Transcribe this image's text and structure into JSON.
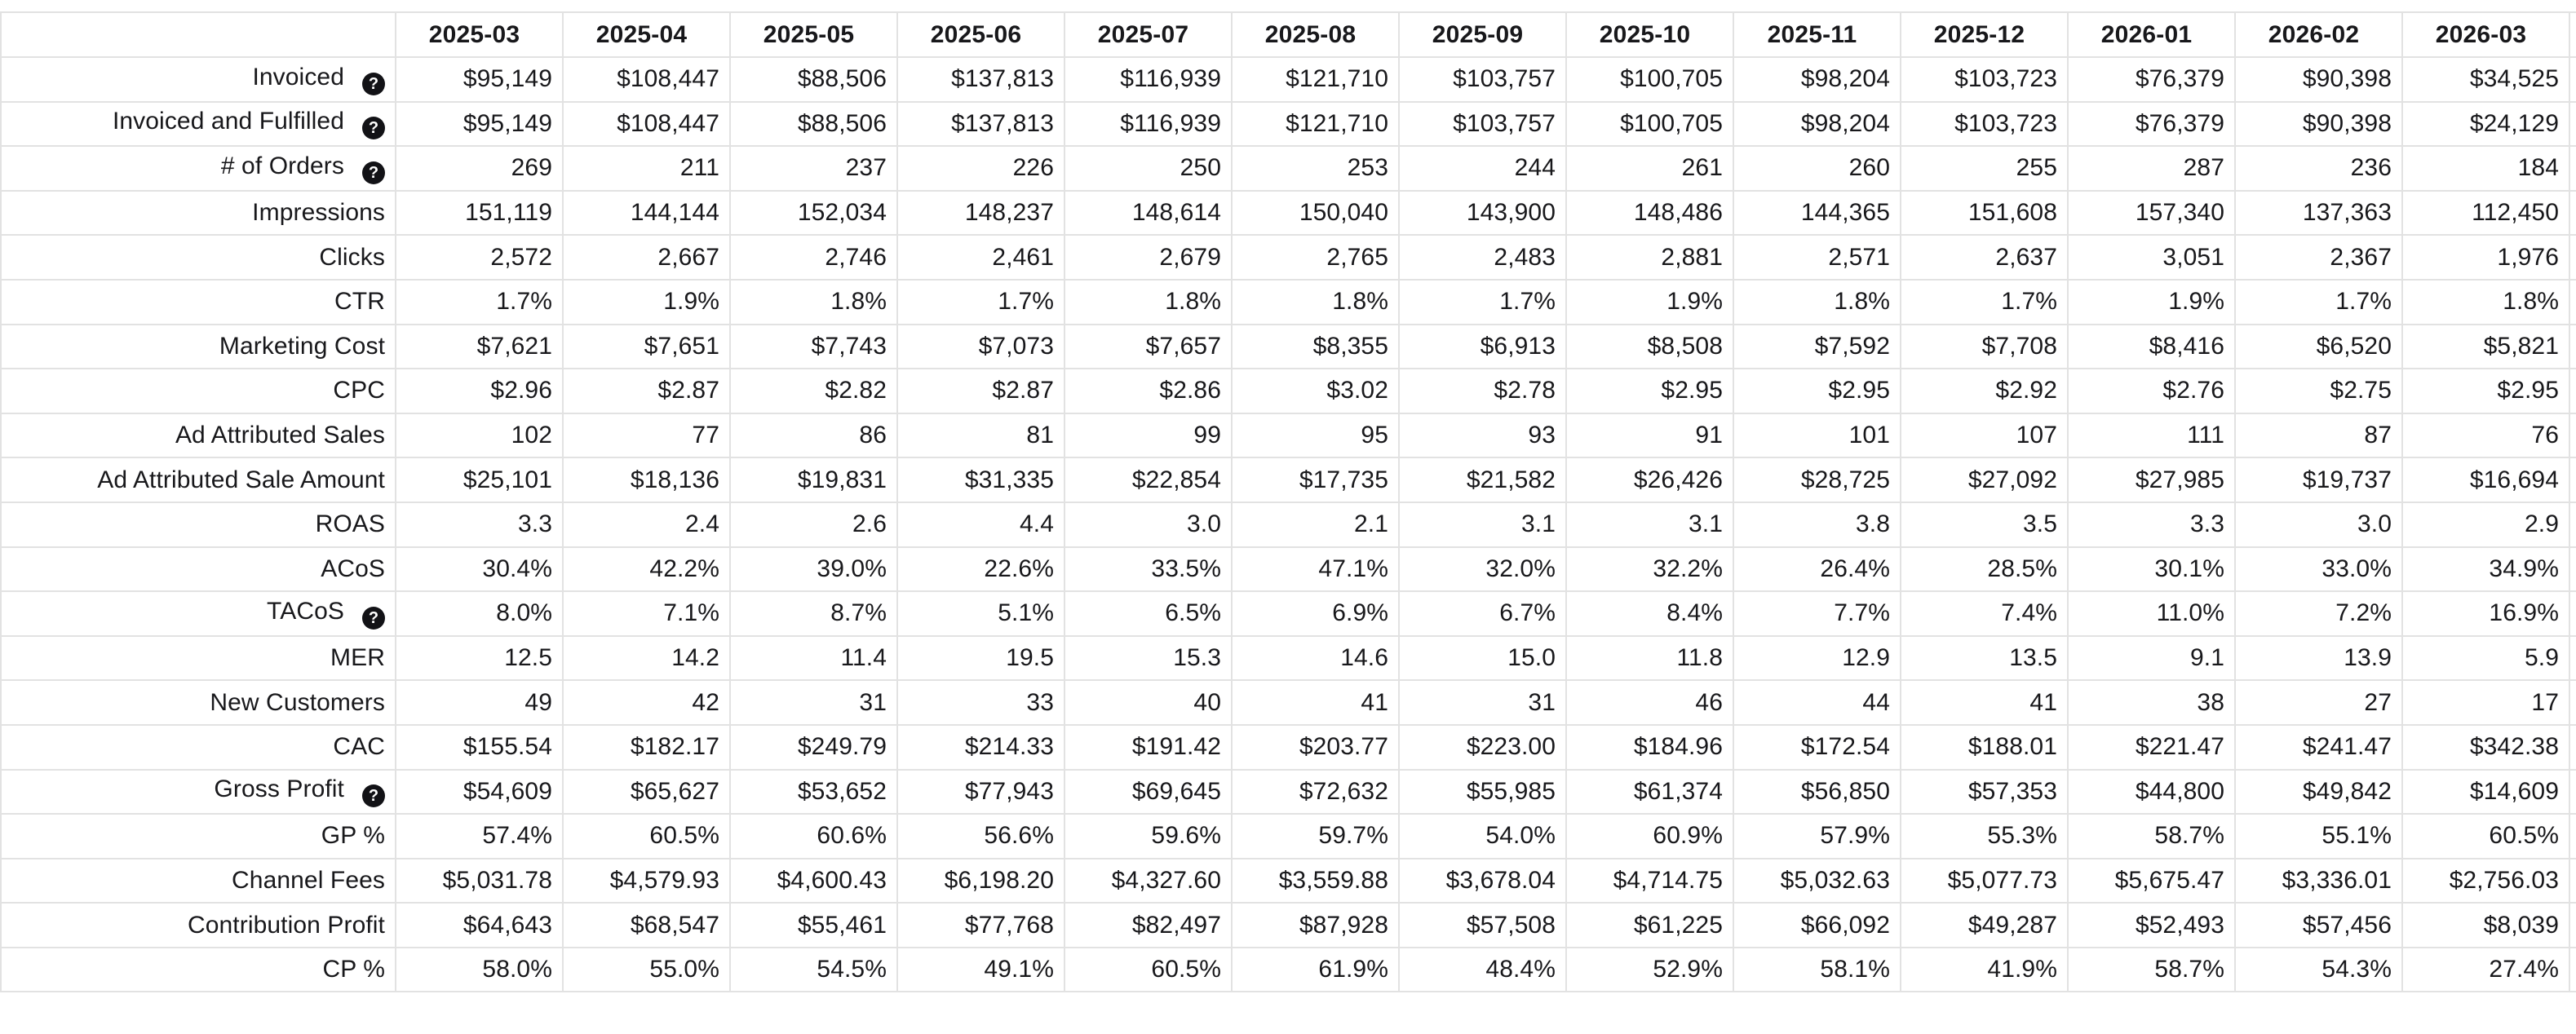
{
  "colors": {
    "border-color": "#e2e2e2",
    "text-color": "#18181b",
    "help-bg": "#121216",
    "help-fg": "#ffffff"
  },
  "icons": {
    "help_glyph": "?"
  },
  "table": {
    "columns": [
      "2025-03",
      "2025-04",
      "2025-05",
      "2025-06",
      "2025-07",
      "2025-08",
      "2025-09",
      "2025-10",
      "2025-11",
      "2025-12",
      "2026-01",
      "2026-02",
      "2026-03"
    ],
    "rows": [
      {
        "label": "Invoiced",
        "has_help": true,
        "values": [
          "$95,149",
          "$108,447",
          "$88,506",
          "$137,813",
          "$116,939",
          "$121,710",
          "$103,757",
          "$100,705",
          "$98,204",
          "$103,723",
          "$76,379",
          "$90,398",
          "$34,525"
        ]
      },
      {
        "label": "Invoiced and Fulfilled",
        "has_help": true,
        "values": [
          "$95,149",
          "$108,447",
          "$88,506",
          "$137,813",
          "$116,939",
          "$121,710",
          "$103,757",
          "$100,705",
          "$98,204",
          "$103,723",
          "$76,379",
          "$90,398",
          "$24,129"
        ]
      },
      {
        "label": "# of Orders",
        "has_help": true,
        "values": [
          "269",
          "211",
          "237",
          "226",
          "250",
          "253",
          "244",
          "261",
          "260",
          "255",
          "287",
          "236",
          "184"
        ]
      },
      {
        "label": "Impressions",
        "has_help": false,
        "values": [
          "151,119",
          "144,144",
          "152,034",
          "148,237",
          "148,614",
          "150,040",
          "143,900",
          "148,486",
          "144,365",
          "151,608",
          "157,340",
          "137,363",
          "112,450"
        ]
      },
      {
        "label": "Clicks",
        "has_help": false,
        "values": [
          "2,572",
          "2,667",
          "2,746",
          "2,461",
          "2,679",
          "2,765",
          "2,483",
          "2,881",
          "2,571",
          "2,637",
          "3,051",
          "2,367",
          "1,976"
        ]
      },
      {
        "label": "CTR",
        "has_help": false,
        "values": [
          "1.7%",
          "1.9%",
          "1.8%",
          "1.7%",
          "1.8%",
          "1.8%",
          "1.7%",
          "1.9%",
          "1.8%",
          "1.7%",
          "1.9%",
          "1.7%",
          "1.8%"
        ]
      },
      {
        "label": "Marketing Cost",
        "has_help": false,
        "values": [
          "$7,621",
          "$7,651",
          "$7,743",
          "$7,073",
          "$7,657",
          "$8,355",
          "$6,913",
          "$8,508",
          "$7,592",
          "$7,708",
          "$8,416",
          "$6,520",
          "$5,821"
        ]
      },
      {
        "label": "CPC",
        "has_help": false,
        "values": [
          "$2.96",
          "$2.87",
          "$2.82",
          "$2.87",
          "$2.86",
          "$3.02",
          "$2.78",
          "$2.95",
          "$2.95",
          "$2.92",
          "$2.76",
          "$2.75",
          "$2.95"
        ]
      },
      {
        "label": "Ad Attributed Sales",
        "has_help": false,
        "values": [
          "102",
          "77",
          "86",
          "81",
          "99",
          "95",
          "93",
          "91",
          "101",
          "107",
          "111",
          "87",
          "76"
        ]
      },
      {
        "label": "Ad Attributed Sale Amount",
        "has_help": false,
        "values": [
          "$25,101",
          "$18,136",
          "$19,831",
          "$31,335",
          "$22,854",
          "$17,735",
          "$21,582",
          "$26,426",
          "$28,725",
          "$27,092",
          "$27,985",
          "$19,737",
          "$16,694"
        ]
      },
      {
        "label": "ROAS",
        "has_help": false,
        "values": [
          "3.3",
          "2.4",
          "2.6",
          "4.4",
          "3.0",
          "2.1",
          "3.1",
          "3.1",
          "3.8",
          "3.5",
          "3.3",
          "3.0",
          "2.9"
        ]
      },
      {
        "label": "ACoS",
        "has_help": false,
        "values": [
          "30.4%",
          "42.2%",
          "39.0%",
          "22.6%",
          "33.5%",
          "47.1%",
          "32.0%",
          "32.2%",
          "26.4%",
          "28.5%",
          "30.1%",
          "33.0%",
          "34.9%"
        ]
      },
      {
        "label": "TACoS",
        "has_help": true,
        "values": [
          "8.0%",
          "7.1%",
          "8.7%",
          "5.1%",
          "6.5%",
          "6.9%",
          "6.7%",
          "8.4%",
          "7.7%",
          "7.4%",
          "11.0%",
          "7.2%",
          "16.9%"
        ]
      },
      {
        "label": "MER",
        "has_help": false,
        "values": [
          "12.5",
          "14.2",
          "11.4",
          "19.5",
          "15.3",
          "14.6",
          "15.0",
          "11.8",
          "12.9",
          "13.5",
          "9.1",
          "13.9",
          "5.9"
        ]
      },
      {
        "label": "New Customers",
        "has_help": false,
        "values": [
          "49",
          "42",
          "31",
          "33",
          "40",
          "41",
          "31",
          "46",
          "44",
          "41",
          "38",
          "27",
          "17"
        ]
      },
      {
        "label": "CAC",
        "has_help": false,
        "values": [
          "$155.54",
          "$182.17",
          "$249.79",
          "$214.33",
          "$191.42",
          "$203.77",
          "$223.00",
          "$184.96",
          "$172.54",
          "$188.01",
          "$221.47",
          "$241.47",
          "$342.38"
        ]
      },
      {
        "label": "Gross Profit",
        "has_help": true,
        "values": [
          "$54,609",
          "$65,627",
          "$53,652",
          "$77,943",
          "$69,645",
          "$72,632",
          "$55,985",
          "$61,374",
          "$56,850",
          "$57,353",
          "$44,800",
          "$49,842",
          "$14,609"
        ]
      },
      {
        "label": "GP %",
        "has_help": false,
        "values": [
          "57.4%",
          "60.5%",
          "60.6%",
          "56.6%",
          "59.6%",
          "59.7%",
          "54.0%",
          "60.9%",
          "57.9%",
          "55.3%",
          "58.7%",
          "55.1%",
          "60.5%"
        ]
      },
      {
        "label": "Channel Fees",
        "has_help": false,
        "values": [
          "$5,031.78",
          "$4,579.93",
          "$4,600.43",
          "$6,198.20",
          "$4,327.60",
          "$3,559.88",
          "$3,678.04",
          "$4,714.75",
          "$5,032.63",
          "$5,077.73",
          "$5,675.47",
          "$3,336.01",
          "$2,756.03"
        ]
      },
      {
        "label": "Contribution Profit",
        "has_help": false,
        "values": [
          "$64,643",
          "$68,547",
          "$55,461",
          "$77,768",
          "$82,497",
          "$87,928",
          "$57,508",
          "$61,225",
          "$66,092",
          "$49,287",
          "$52,493",
          "$57,456",
          "$8,039"
        ]
      },
      {
        "label": "CP %",
        "has_help": false,
        "values": [
          "58.0%",
          "55.0%",
          "54.5%",
          "49.1%",
          "60.5%",
          "61.9%",
          "48.4%",
          "52.9%",
          "58.1%",
          "41.9%",
          "58.7%",
          "54.3%",
          "27.4%"
        ]
      }
    ]
  }
}
